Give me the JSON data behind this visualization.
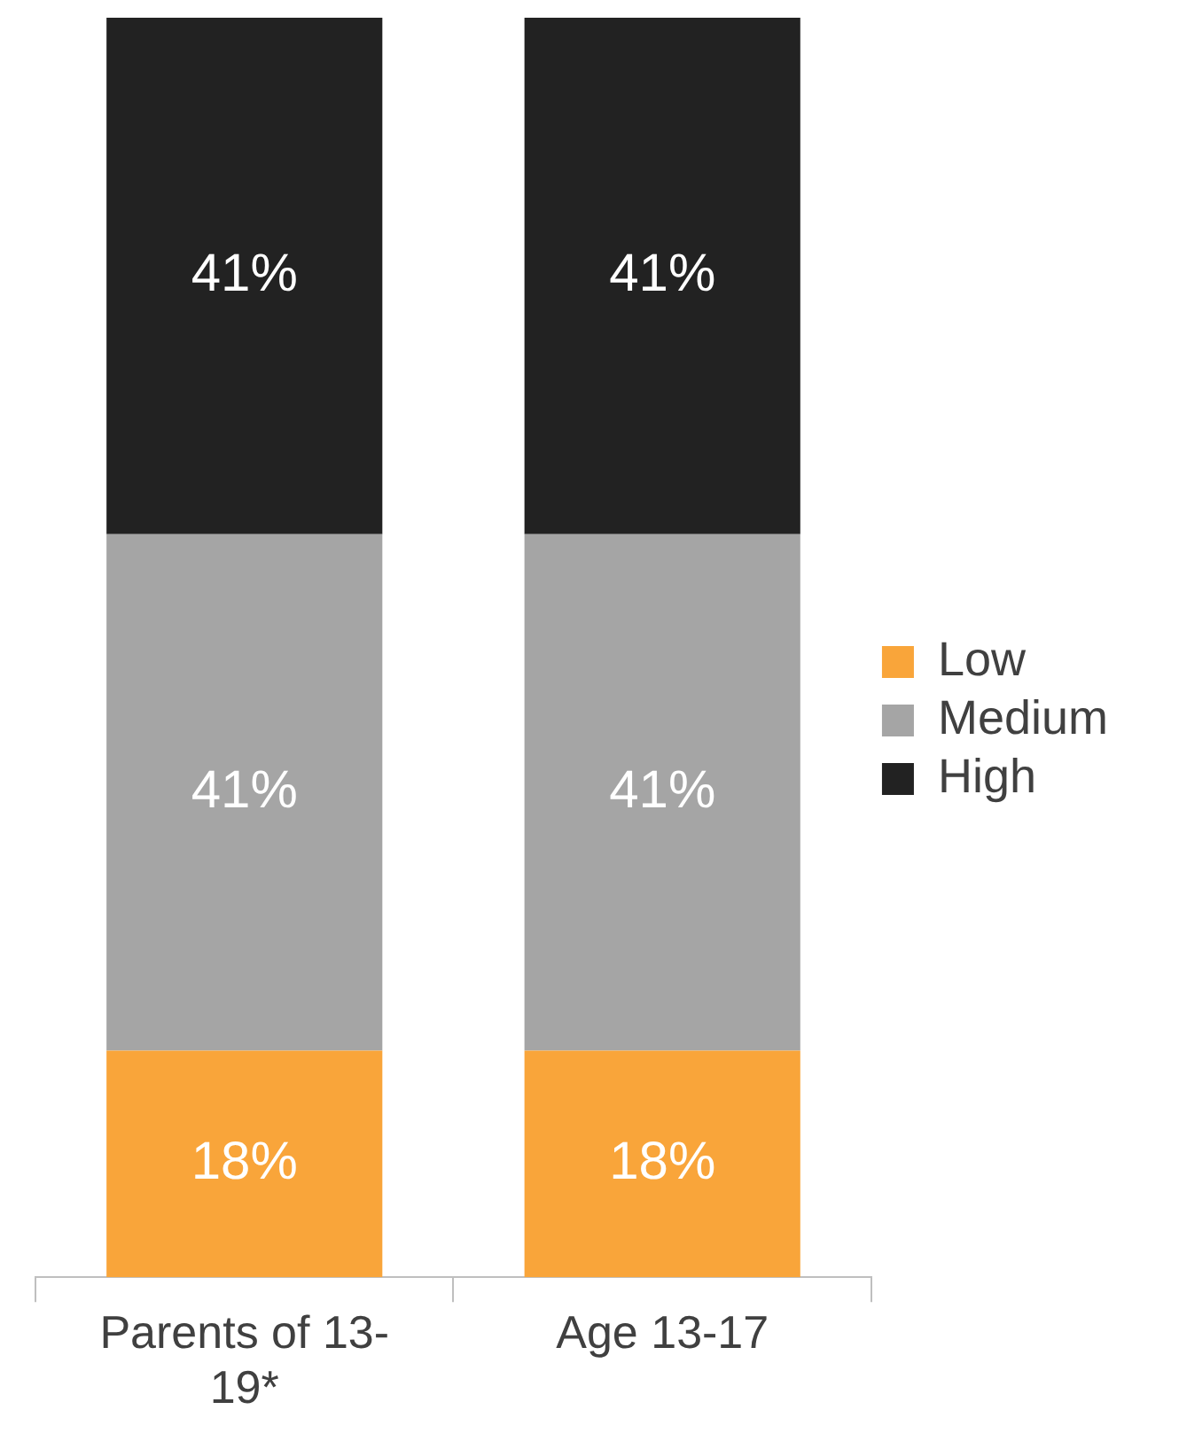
{
  "chart_data": {
    "type": "bar",
    "stacked": true,
    "legend": "right",
    "categories": [
      "Parents of 13-19*",
      "Age 13-17"
    ],
    "series": [
      {
        "name": "Low",
        "color": "#f9a53a",
        "values": [
          18,
          18
        ],
        "value_labels": [
          "18%",
          "18%"
        ]
      },
      {
        "name": "Medium",
        "color": "#a5a5a5",
        "values": [
          41,
          41
        ],
        "value_labels": [
          "41%",
          "41%"
        ]
      },
      {
        "name": "High",
        "color": "#222222",
        "values": [
          41,
          41
        ],
        "value_labels": [
          "41%",
          "41%"
        ]
      }
    ]
  }
}
